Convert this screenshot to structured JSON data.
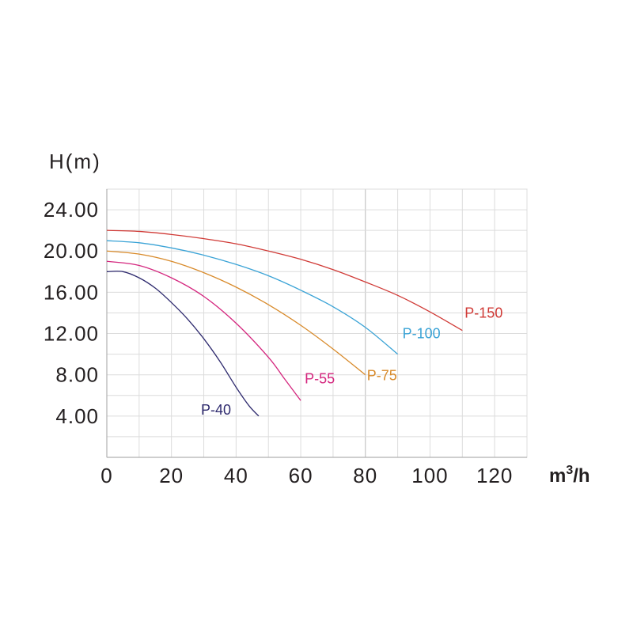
{
  "chart_data": {
    "type": "line",
    "title": "",
    "ylabel": "H(m)",
    "xlabel": "m",
    "xlabel_sup": "3",
    "xlabel_tail": "/h",
    "xlim": [
      0,
      130
    ],
    "ylim": [
      0,
      26
    ],
    "x_ticks": [
      0,
      20,
      40,
      60,
      80,
      100,
      120
    ],
    "x_tick_labels": [
      "0",
      "20",
      "40",
      "60",
      "80",
      "100",
      "120"
    ],
    "y_ticks": [
      4,
      8,
      12,
      16,
      20,
      24
    ],
    "y_tick_labels": [
      "4.00",
      "8.00",
      "12.00",
      "16.00",
      "20.00",
      "24.00"
    ],
    "grid": true,
    "series": [
      {
        "name": "P-40",
        "color": "#2e2a6e",
        "x": [
          0,
          5,
          10,
          15,
          20,
          25,
          30,
          35,
          40,
          44,
          47
        ],
        "y": [
          18.0,
          18.0,
          17.4,
          16.4,
          15.0,
          13.4,
          11.5,
          9.3,
          6.8,
          5.0,
          4.0
        ]
      },
      {
        "name": "P-55",
        "color": "#d4267e",
        "x": [
          0,
          10,
          20,
          30,
          40,
          50,
          55,
          60
        ],
        "y": [
          19.0,
          18.6,
          17.4,
          15.6,
          13.0,
          9.7,
          7.6,
          5.5
        ]
      },
      {
        "name": "P-75",
        "color": "#d88a2a",
        "x": [
          0,
          10,
          20,
          30,
          40,
          50,
          60,
          70,
          80
        ],
        "y": [
          20.0,
          19.7,
          19.0,
          17.9,
          16.5,
          14.8,
          12.8,
          10.5,
          8.0
        ]
      },
      {
        "name": "P-100",
        "color": "#3aa3d6",
        "x": [
          0,
          10,
          20,
          30,
          40,
          50,
          60,
          70,
          80,
          90
        ],
        "y": [
          21.0,
          20.8,
          20.3,
          19.6,
          18.7,
          17.6,
          16.2,
          14.6,
          12.6,
          10.0
        ]
      },
      {
        "name": "P-150",
        "color": "#d03a36",
        "x": [
          0,
          10,
          20,
          30,
          40,
          50,
          60,
          70,
          80,
          90,
          100,
          110
        ],
        "y": [
          22.0,
          21.9,
          21.6,
          21.2,
          20.7,
          20.0,
          19.2,
          18.2,
          17.0,
          15.7,
          14.1,
          12.3
        ]
      }
    ]
  }
}
